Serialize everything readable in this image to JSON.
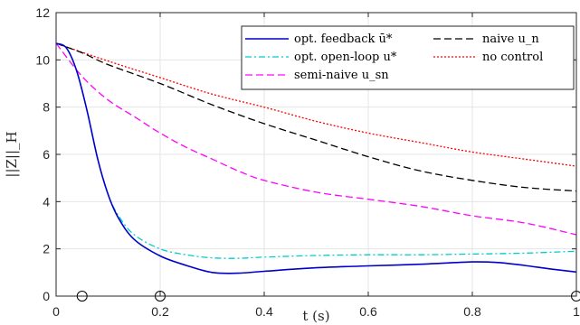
{
  "chart_data": {
    "type": "line",
    "xlabel": "t (s)",
    "ylabel": "||Z||_H",
    "xlim": [
      0,
      1
    ],
    "ylim": [
      0,
      12
    ],
    "x_ticks": [
      0,
      0.2,
      0.4,
      0.6,
      0.8,
      1
    ],
    "x_tick_labels": [
      "0",
      "0.2",
      "0.4",
      "0.6",
      "0.8",
      "1"
    ],
    "y_ticks": [
      0,
      2,
      4,
      6,
      8,
      10,
      12
    ],
    "y_tick_labels": [
      "0",
      "2",
      "4",
      "6",
      "8",
      "10",
      "12"
    ],
    "grid": true,
    "legend_position": "top-right",
    "series": [
      {
        "name": "opt. feedback ū*",
        "color": "#0000cc",
        "style": "solid",
        "x": [
          0,
          0.02,
          0.04,
          0.06,
          0.08,
          0.1,
          0.12,
          0.15,
          0.2,
          0.25,
          0.3,
          0.35,
          0.4,
          0.5,
          0.6,
          0.7,
          0.8,
          0.85,
          0.9,
          0.95,
          1.0
        ],
        "y": [
          10.7,
          10.5,
          9.5,
          7.8,
          5.8,
          4.3,
          3.3,
          2.4,
          1.7,
          1.3,
          1.0,
          0.97,
          1.05,
          1.2,
          1.28,
          1.35,
          1.45,
          1.42,
          1.3,
          1.15,
          1.02
        ]
      },
      {
        "name": "opt. open-loop u*",
        "color": "#00cccc",
        "style": "dashdot",
        "x": [
          0,
          0.02,
          0.04,
          0.06,
          0.08,
          0.1,
          0.12,
          0.15,
          0.2,
          0.25,
          0.3,
          0.35,
          0.4,
          0.5,
          0.6,
          0.7,
          0.8,
          0.9,
          1.0
        ],
        "y": [
          10.7,
          10.5,
          9.5,
          7.8,
          5.8,
          4.3,
          3.4,
          2.6,
          2.0,
          1.75,
          1.62,
          1.6,
          1.65,
          1.72,
          1.75,
          1.75,
          1.78,
          1.82,
          1.9
        ]
      },
      {
        "name": "semi-naive u_sn",
        "color": "#ff00ff",
        "style": "dashed",
        "x": [
          0,
          0.05,
          0.1,
          0.15,
          0.2,
          0.25,
          0.3,
          0.35,
          0.4,
          0.5,
          0.6,
          0.7,
          0.8,
          0.9,
          1.0
        ],
        "y": [
          10.7,
          9.3,
          8.3,
          7.6,
          6.9,
          6.3,
          5.8,
          5.3,
          4.9,
          4.4,
          4.1,
          3.8,
          3.4,
          3.1,
          2.6
        ]
      },
      {
        "name": "naive u_n",
        "color": "#000000",
        "style": "dashed",
        "x": [
          0,
          0.05,
          0.1,
          0.2,
          0.3,
          0.4,
          0.5,
          0.6,
          0.7,
          0.8,
          0.9,
          1.0
        ],
        "y": [
          10.7,
          10.3,
          9.8,
          9.0,
          8.1,
          7.3,
          6.6,
          5.9,
          5.3,
          4.9,
          4.6,
          4.45
        ]
      },
      {
        "name": "no control",
        "color": "#ff0000",
        "style": "dotted",
        "x": [
          0,
          0.1,
          0.2,
          0.3,
          0.4,
          0.5,
          0.6,
          0.7,
          0.8,
          0.9,
          1.0
        ],
        "y": [
          10.7,
          9.95,
          9.25,
          8.55,
          8.0,
          7.4,
          6.9,
          6.5,
          6.1,
          5.8,
          5.5
        ]
      }
    ],
    "markers": {
      "shape": "circle",
      "x": [
        0.05,
        0.2,
        1.0
      ],
      "y": [
        0,
        0,
        0
      ]
    }
  }
}
